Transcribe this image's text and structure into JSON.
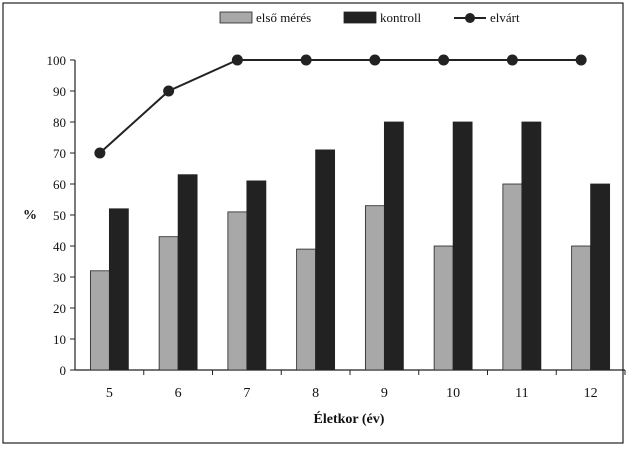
{
  "chart_data": {
    "type": "bar",
    "categories": [
      "5",
      "6",
      "7",
      "8",
      "9",
      "10",
      "11",
      "12"
    ],
    "series": [
      {
        "name": "első mérés",
        "kind": "bar",
        "color": "#a8a8a8",
        "values": [
          32,
          43,
          51,
          39,
          53,
          40,
          60,
          40
        ]
      },
      {
        "name": "kontroll",
        "kind": "bar",
        "color": "#222222",
        "values": [
          52,
          63,
          61,
          71,
          80,
          80,
          80,
          60
        ]
      },
      {
        "name": "elvárt",
        "kind": "line",
        "color": "#222222",
        "values": [
          70,
          90,
          100,
          100,
          100,
          100,
          100,
          100
        ]
      }
    ],
    "xlabel": "Életkor (év)",
    "ylabel": "%",
    "ylim": [
      0,
      100
    ],
    "yticks": [
      0,
      10,
      20,
      30,
      40,
      50,
      60,
      70,
      80,
      90,
      100
    ],
    "grid": false,
    "legend_position": "top"
  }
}
